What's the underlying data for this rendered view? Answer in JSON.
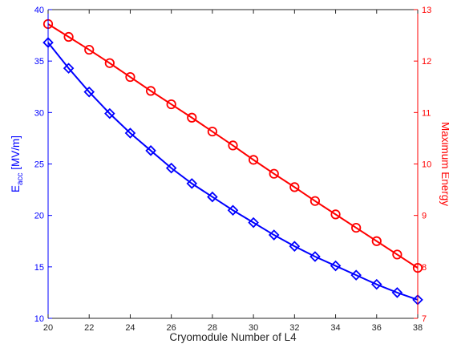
{
  "chart_data": {
    "type": "line",
    "title": "",
    "xlabel": "Cryomodule Number of L4",
    "ylabel_left": {
      "main": "E",
      "sub": "acc",
      "rest": " [MV/m]"
    },
    "ylabel_right": "Maximum Energy",
    "xlim": [
      20,
      38
    ],
    "ylim_left": [
      10,
      40
    ],
    "ylim_right": [
      7,
      13
    ],
    "x_ticks": [
      20,
      22,
      24,
      26,
      28,
      30,
      32,
      34,
      36,
      38
    ],
    "y_left_ticks": [
      10,
      15,
      20,
      25,
      30,
      35,
      40
    ],
    "y_right_ticks": [
      7,
      8,
      9,
      10,
      11,
      12,
      13
    ],
    "grid": false,
    "legend": "none",
    "x": [
      20,
      21,
      22,
      23,
      24,
      25,
      26,
      27,
      28,
      29,
      30,
      31,
      32,
      33,
      34,
      35,
      36,
      37,
      38
    ],
    "series": [
      {
        "axis": "left",
        "color": "#0000ff",
        "marker": "diamond",
        "values": [
          36.8,
          34.3,
          32.0,
          29.9,
          28.0,
          26.3,
          24.6,
          23.1,
          21.8,
          20.5,
          19.3,
          18.1,
          17.0,
          16.0,
          15.1,
          14.2,
          13.3,
          12.5,
          11.8
        ]
      },
      {
        "axis": "right",
        "color": "#ff0000",
        "marker": "circle",
        "values": [
          12.72,
          12.47,
          12.22,
          11.96,
          11.69,
          11.42,
          11.16,
          10.9,
          10.63,
          10.36,
          10.08,
          9.81,
          9.55,
          9.28,
          9.02,
          8.76,
          8.5,
          8.24,
          7.98
        ]
      }
    ]
  }
}
